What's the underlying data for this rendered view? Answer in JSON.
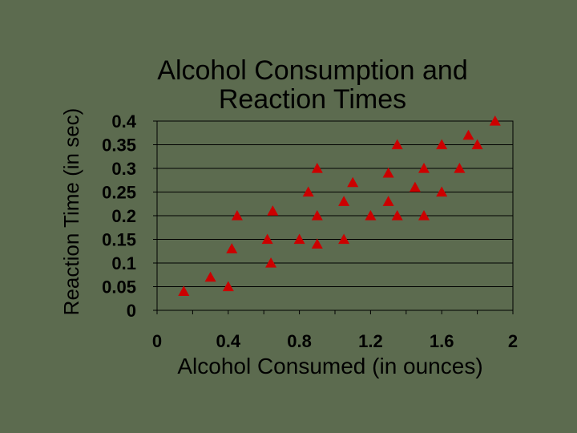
{
  "chart_data": {
    "type": "scatter",
    "title_lines": [
      "Alcohol Consumption and",
      "Reaction Times"
    ],
    "xlabel": "Alcohol Consumed (in ounces)",
    "ylabel": "Reaction Time (in sec)",
    "xlim": [
      0,
      2
    ],
    "ylim": [
      0,
      0.4
    ],
    "x_ticks": [
      "0",
      "0.4",
      "0.8",
      "1.2",
      "1.6",
      "2"
    ],
    "y_ticks": [
      "0",
      "0.05",
      "0.1",
      "0.15",
      "0.2",
      "0.25",
      "0.3",
      "0.35",
      "0.4"
    ],
    "grid": "horizontal",
    "marker": "triangle",
    "marker_color": "#cc0000",
    "points": [
      {
        "x": 0.15,
        "y": 0.04
      },
      {
        "x": 0.3,
        "y": 0.07
      },
      {
        "x": 0.4,
        "y": 0.05
      },
      {
        "x": 0.42,
        "y": 0.13
      },
      {
        "x": 0.45,
        "y": 0.2
      },
      {
        "x": 0.62,
        "y": 0.15
      },
      {
        "x": 0.64,
        "y": 0.1
      },
      {
        "x": 0.65,
        "y": 0.21
      },
      {
        "x": 0.8,
        "y": 0.15
      },
      {
        "x": 0.85,
        "y": 0.25
      },
      {
        "x": 0.9,
        "y": 0.14
      },
      {
        "x": 0.9,
        "y": 0.2
      },
      {
        "x": 0.9,
        "y": 0.3
      },
      {
        "x": 1.05,
        "y": 0.15
      },
      {
        "x": 1.05,
        "y": 0.23
      },
      {
        "x": 1.1,
        "y": 0.27
      },
      {
        "x": 1.2,
        "y": 0.2
      },
      {
        "x": 1.3,
        "y": 0.23
      },
      {
        "x": 1.3,
        "y": 0.29
      },
      {
        "x": 1.35,
        "y": 0.35
      },
      {
        "x": 1.35,
        "y": 0.2
      },
      {
        "x": 1.45,
        "y": 0.26
      },
      {
        "x": 1.5,
        "y": 0.3
      },
      {
        "x": 1.5,
        "y": 0.2
      },
      {
        "x": 1.6,
        "y": 0.25
      },
      {
        "x": 1.6,
        "y": 0.35
      },
      {
        "x": 1.7,
        "y": 0.3
      },
      {
        "x": 1.75,
        "y": 0.37
      },
      {
        "x": 1.8,
        "y": 0.35
      },
      {
        "x": 1.9,
        "y": 0.4
      }
    ]
  }
}
